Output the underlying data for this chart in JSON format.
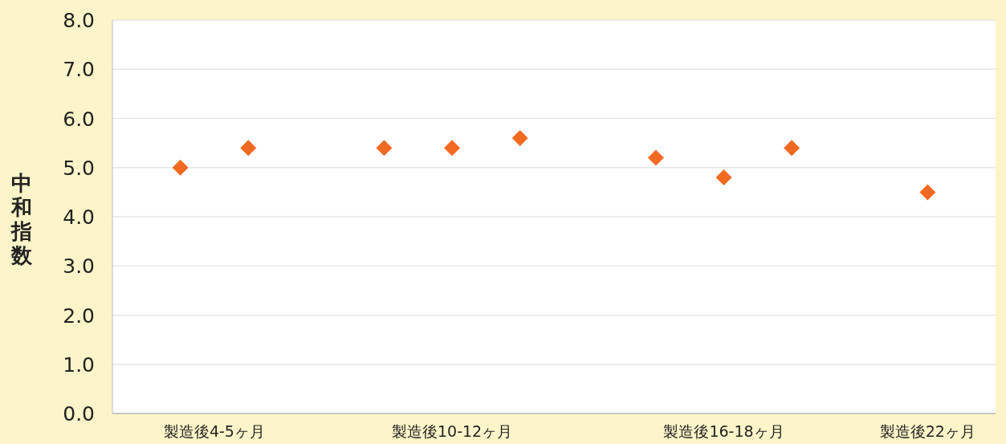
{
  "chart_data": {
    "type": "scatter",
    "ylabel": "中和指数",
    "marker": "diamond",
    "grid": "y",
    "categories": [
      null,
      null,
      "製造後4-5ヶ月",
      null,
      null,
      null,
      null,
      null,
      null,
      "製造後10-12ヶ月",
      null,
      null,
      null,
      null,
      null,
      null,
      null,
      "製造後16-18ヶ月",
      null,
      null,
      null,
      null,
      null,
      "製造後22ヶ月",
      null
    ],
    "series": [
      {
        "color": "#f26a22",
        "values": [
          null,
          5.0,
          null,
          5.4,
          null,
          null,
          null,
          5.4,
          null,
          5.4,
          null,
          5.6,
          null,
          null,
          null,
          5.2,
          null,
          4.8,
          null,
          5.4,
          null,
          null,
          null,
          4.5,
          null
        ]
      }
    ],
    "ylim": [
      0,
      8
    ],
    "yticks": [
      {
        "value": 0,
        "label": "0.0"
      },
      {
        "value": 1,
        "label": "1.0"
      },
      {
        "value": 2,
        "label": "2.0"
      },
      {
        "value": 3,
        "label": "3.0"
      },
      {
        "value": 4,
        "label": "4.0"
      },
      {
        "value": 5,
        "label": "5.0"
      },
      {
        "value": 6,
        "label": "6.0"
      },
      {
        "value": 7,
        "label": "7.0"
      },
      {
        "value": 8,
        "label": "8.0"
      }
    ]
  }
}
